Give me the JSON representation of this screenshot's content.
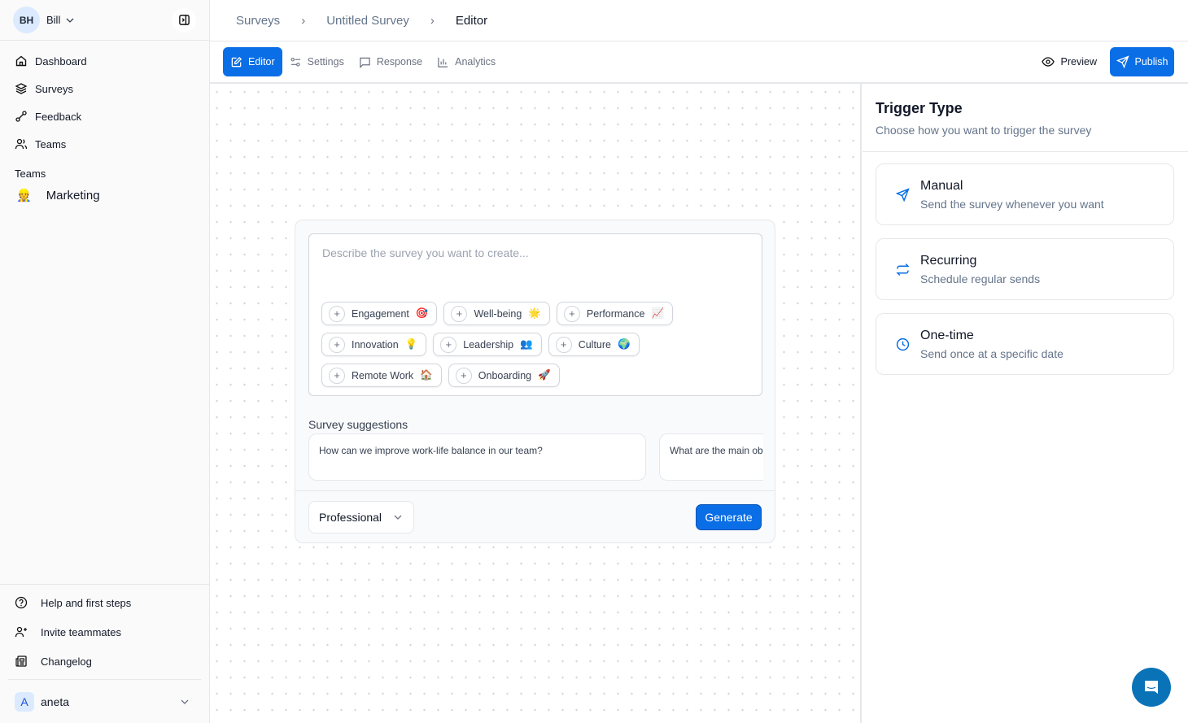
{
  "user": {
    "initials": "BH",
    "name": "Bill"
  },
  "sidebar": {
    "items": [
      {
        "label": "Dashboard",
        "icon": "home-icon"
      },
      {
        "label": "Surveys",
        "icon": "layers-icon"
      },
      {
        "label": "Feedback",
        "icon": "feedback-icon"
      },
      {
        "label": "Teams",
        "icon": "users-icon"
      }
    ],
    "teams_heading": "Teams",
    "team": {
      "label": "Marketing",
      "emoji": "👷"
    },
    "bottom": [
      {
        "label": "Help and first steps"
      },
      {
        "label": "Invite teammates"
      },
      {
        "label": "Changelog"
      }
    ],
    "account": {
      "initial": "A",
      "name": "aneta"
    }
  },
  "breadcrumb": [
    "Surveys",
    "Untitled Survey",
    "Editor"
  ],
  "tabs": [
    {
      "label": "Editor",
      "active": true
    },
    {
      "label": "Settings"
    },
    {
      "label": "Response"
    },
    {
      "label": "Analytics"
    }
  ],
  "toolbar": {
    "preview": "Preview",
    "publish": "Publish"
  },
  "composer": {
    "placeholder": "Describe the survey you want to create...",
    "chips": [
      {
        "label": "Engagement",
        "emoji": "🎯"
      },
      {
        "label": "Well-being",
        "emoji": "🌟"
      },
      {
        "label": "Performance",
        "emoji": "📈"
      },
      {
        "label": "Innovation",
        "emoji": "💡"
      },
      {
        "label": "Leadership",
        "emoji": "👥"
      },
      {
        "label": "Culture",
        "emoji": "🌍"
      },
      {
        "label": "Remote Work",
        "emoji": "🏠"
      },
      {
        "label": "Onboarding",
        "emoji": "🚀"
      }
    ],
    "suggestions_title": "Survey suggestions",
    "suggestions": [
      "How can we improve work-life balance in our team?",
      "What are the main ob"
    ],
    "tone": "Professional",
    "generate": "Generate"
  },
  "trigger": {
    "title": "Trigger Type",
    "subtitle": "Choose how you want to trigger the survey",
    "options": [
      {
        "title": "Manual",
        "desc": "Send the survey whenever you want"
      },
      {
        "title": "Recurring",
        "desc": "Schedule regular sends"
      },
      {
        "title": "One-time",
        "desc": "Send once at a specific date"
      }
    ]
  },
  "colors": {
    "accent": "#0a6ee6",
    "chat": "#0a73b8"
  }
}
